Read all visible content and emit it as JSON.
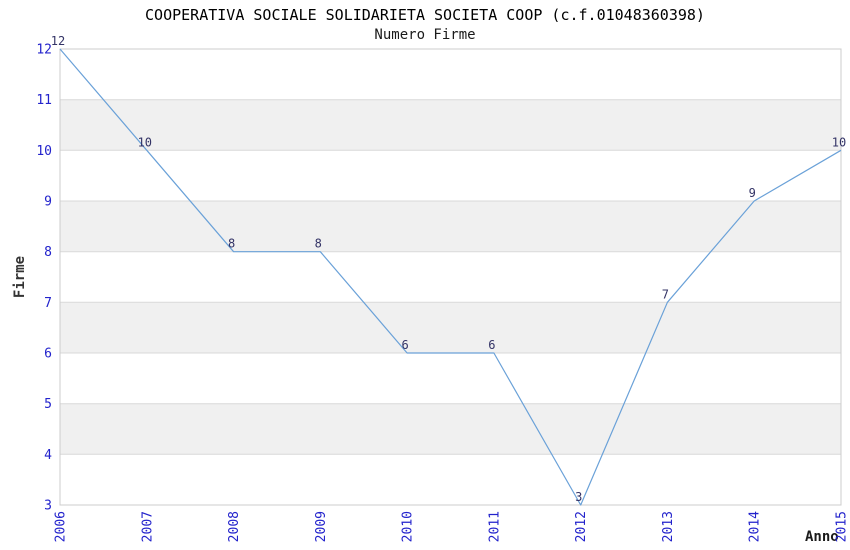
{
  "chart_data": {
    "type": "line",
    "title": "COOPERATIVA SOCIALE SOLIDARIETA SOCIETA COOP (c.f.01048360398)",
    "subtitle": "Numero Firme",
    "xlabel": "Anno",
    "ylabel": "Firme",
    "x": [
      2006,
      2007,
      2008,
      2009,
      2010,
      2011,
      2012,
      2013,
      2014,
      2015
    ],
    "series": [
      {
        "name": "Numero Firme",
        "values": [
          12,
          10,
          8,
          8,
          6,
          6,
          3,
          7,
          9,
          10
        ]
      }
    ],
    "ylim": [
      3,
      12
    ],
    "yticks": [
      3,
      4,
      5,
      6,
      7,
      8,
      9,
      10,
      11,
      12
    ],
    "grid": true,
    "legend_position": "none",
    "band_fill": "alternating-horizontal",
    "data_labels_shown": true,
    "x_tick_rotation": -90,
    "colors": {
      "line": "#6aa1d8",
      "tick_label": "#2323cc",
      "data_label": "#333366",
      "band": "#f0f0f0",
      "grid": "#d9d9d9",
      "border": "#cccccc",
      "title": "#000000"
    }
  }
}
